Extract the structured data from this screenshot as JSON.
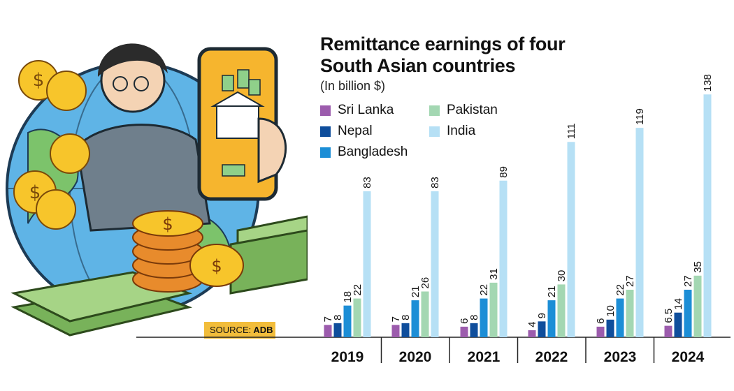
{
  "chart_data": {
    "type": "bar",
    "title": "Remittance earnings of four South Asian countries",
    "subtitle": "(In billion $)",
    "categories": [
      "2019",
      "2020",
      "2021",
      "2022",
      "2023",
      "2024"
    ],
    "series": [
      {
        "name": "Sri Lanka",
        "color": "#9c5cad",
        "values": [
          7,
          7,
          6,
          4,
          6,
          6.5
        ],
        "labels": [
          "7",
          "7",
          "6",
          "4",
          "6",
          "6.5"
        ]
      },
      {
        "name": "Nepal",
        "color": "#0f4e9c",
        "values": [
          8,
          8,
          8,
          9,
          10,
          14
        ],
        "labels": [
          "8",
          "8",
          "8",
          "9",
          "10",
          "14"
        ]
      },
      {
        "name": "Bangladesh",
        "color": "#1c8ed6",
        "values": [
          18,
          21,
          22,
          21,
          22,
          27
        ],
        "labels": [
          "18",
          "21",
          "22",
          "21",
          "22",
          "27"
        ]
      },
      {
        "name": "Pakistan",
        "color": "#a3d7b2",
        "values": [
          22,
          26,
          31,
          30,
          27,
          35
        ],
        "labels": [
          "22",
          "26",
          "31",
          "30",
          "27",
          "35"
        ]
      },
      {
        "name": "India",
        "color": "#b6e0f5",
        "values": [
          83,
          83,
          89,
          111,
          119,
          138
        ],
        "labels": [
          "83",
          "83",
          "89",
          "111",
          "119",
          "138"
        ]
      }
    ],
    "legend": {
      "position": "top-left",
      "order": [
        "Sri Lanka",
        "Pakistan",
        "Nepal",
        "India",
        "Bangladesh"
      ]
    },
    "xlabel": "",
    "ylabel": "",
    "ylim": [
      0,
      140
    ],
    "grid": false
  },
  "source": {
    "label": "SOURCE:",
    "value": "ADB"
  },
  "illustration": {
    "icon": "person-with-phone-money-icon"
  }
}
